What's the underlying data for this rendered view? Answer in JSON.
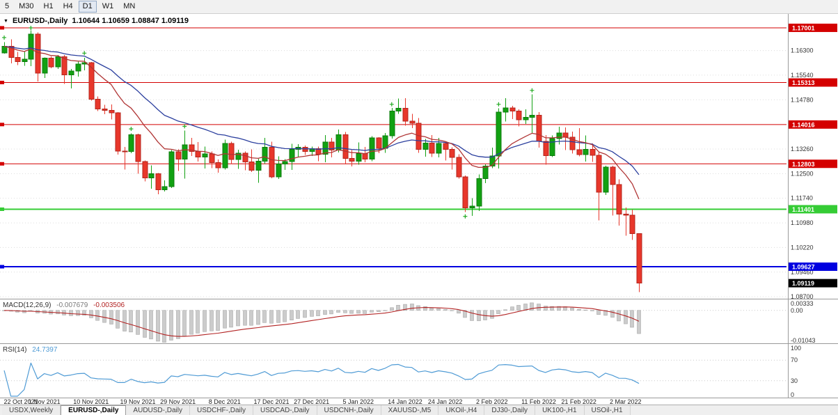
{
  "toolbar": {
    "timeframes": [
      "5",
      "M30",
      "H1",
      "H4",
      "D1",
      "W1",
      "MN"
    ],
    "active_timeframe": "D1"
  },
  "chart": {
    "title_symbol": "EURUSD-,Daily",
    "title_ohlc": "1.10644 1.10659 1.08847 1.09119"
  },
  "chart_data": {
    "type": "candlestick",
    "symbol": "EURUSD-",
    "timeframe": "Daily",
    "last_ohlc": {
      "open": "1.10644",
      "high": "1.10659",
      "low": "1.08847",
      "close": "1.09119"
    },
    "price_range": {
      "min": 1.0866,
      "max": 1.1743
    },
    "price_axis": [
      "1.16300",
      "1.15540",
      "1.14780",
      "1.13260",
      "1.12500",
      "1.11740",
      "1.10980",
      "1.10220",
      "1.09460",
      "1.08700"
    ],
    "hlines": [
      {
        "label": "1.17001",
        "value": 1.17001,
        "color": "#d40000",
        "width": 1
      },
      {
        "label": "1.15313",
        "value": 1.15313,
        "color": "#d40000",
        "width": 1
      },
      {
        "label": "1.14016",
        "value": 1.14016,
        "color": "#d40000",
        "width": 1
      },
      {
        "label": "1.12803",
        "value": 1.12803,
        "color": "#d40000",
        "width": 1
      },
      {
        "label": "1.11401",
        "value": 1.11401,
        "color": "#35cc35",
        "width": 2
      },
      {
        "label": "1.09627",
        "value": 1.09627,
        "color": "#0000e0",
        "width": 2
      }
    ],
    "current_price": {
      "label": "1.09119",
      "value": 1.09119,
      "color": "#000000"
    },
    "x_ticks": [
      {
        "index": 0,
        "label": "22 Oct 2021"
      },
      {
        "index": 6,
        "label": "1 Nov 2021"
      },
      {
        "index": 13,
        "label": "10 Nov 2021"
      },
      {
        "index": 20,
        "label": "19 Nov 2021"
      },
      {
        "index": 26,
        "label": "29 Nov 2021"
      },
      {
        "index": 33,
        "label": "8 Dec 2021"
      },
      {
        "index": 40,
        "label": "17 Dec 2021"
      },
      {
        "index": 46,
        "label": "27 Dec 2021"
      },
      {
        "index": 53,
        "label": "5 Jan 2022"
      },
      {
        "index": 60,
        "label": "14 Jan 2022"
      },
      {
        "index": 66,
        "label": "24 Jan 2022"
      },
      {
        "index": 73,
        "label": "2 Feb 2022"
      },
      {
        "index": 80,
        "label": "11 Feb 2022"
      },
      {
        "index": 86,
        "label": "21 Feb 2022"
      },
      {
        "index": 93,
        "label": "2 Mar 2022"
      }
    ],
    "candles": [
      [
        1.1623,
        1.1656,
        1.1621,
        1.1643
      ],
      [
        1.1643,
        1.1665,
        1.159,
        1.1609
      ],
      [
        1.1609,
        1.1626,
        1.1585,
        1.1596
      ],
      [
        1.1596,
        1.1626,
        1.1583,
        1.1603
      ],
      [
        1.1603,
        1.1692,
        1.1582,
        1.1681
      ],
      [
        1.1681,
        1.1686,
        1.1535,
        1.156
      ],
      [
        1.156,
        1.1609,
        1.1545,
        1.1606
      ],
      [
        1.1606,
        1.1612,
        1.1575,
        1.158
      ],
      [
        1.158,
        1.1616,
        1.1573,
        1.1611
      ],
      [
        1.1611,
        1.1616,
        1.1527,
        1.1555
      ],
      [
        1.1555,
        1.1573,
        1.1513,
        1.1567
      ],
      [
        1.1567,
        1.1596,
        1.155,
        1.1588
      ],
      [
        1.1588,
        1.1608,
        1.1569,
        1.1593
      ],
      [
        1.1593,
        1.1595,
        1.1475,
        1.148
      ],
      [
        1.148,
        1.1488,
        1.1443,
        1.145
      ],
      [
        1.145,
        1.1463,
        1.1433,
        1.1445
      ],
      [
        1.1445,
        1.1464,
        1.1417,
        1.1438
      ],
      [
        1.1438,
        1.144,
        1.1309,
        1.132
      ],
      [
        1.132,
        1.1332,
        1.1263,
        1.1319
      ],
      [
        1.1319,
        1.1374,
        1.1313,
        1.137
      ],
      [
        1.137,
        1.1373,
        1.125,
        1.1287
      ],
      [
        1.1287,
        1.1291,
        1.1226,
        1.1237
      ],
      [
        1.1237,
        1.1275,
        1.1204,
        1.125
      ],
      [
        1.125,
        1.1252,
        1.1186,
        1.12
      ],
      [
        1.12,
        1.1229,
        1.1195,
        1.121
      ],
      [
        1.121,
        1.1323,
        1.1206,
        1.1317
      ],
      [
        1.1317,
        1.1325,
        1.1258,
        1.1295
      ],
      [
        1.1295,
        1.1383,
        1.1235,
        1.1339
      ],
      [
        1.1339,
        1.136,
        1.1305,
        1.1319
      ],
      [
        1.1319,
        1.1348,
        1.1287,
        1.1301
      ],
      [
        1.1301,
        1.1334,
        1.1266,
        1.1311
      ],
      [
        1.1311,
        1.1318,
        1.1267,
        1.1284
      ],
      [
        1.1284,
        1.1294,
        1.1253,
        1.1268
      ],
      [
        1.1268,
        1.1355,
        1.1263,
        1.1343
      ],
      [
        1.1343,
        1.1349,
        1.128,
        1.1294
      ],
      [
        1.1294,
        1.1324,
        1.1265,
        1.1313
      ],
      [
        1.1313,
        1.1319,
        1.126,
        1.1286
      ],
      [
        1.1286,
        1.1325,
        1.1255,
        1.126
      ],
      [
        1.126,
        1.1296,
        1.1222,
        1.1288
      ],
      [
        1.1288,
        1.136,
        1.1281,
        1.1331
      ],
      [
        1.1331,
        1.1349,
        1.1236,
        1.124
      ],
      [
        1.124,
        1.1303,
        1.1234,
        1.128
      ],
      [
        1.128,
        1.1295,
        1.1262,
        1.1287
      ],
      [
        1.1287,
        1.1342,
        1.1261,
        1.1325
      ],
      [
        1.1325,
        1.1341,
        1.13,
        1.1331
      ],
      [
        1.1331,
        1.1337,
        1.1308,
        1.1318
      ],
      [
        1.1318,
        1.1334,
        1.1304,
        1.1327
      ],
      [
        1.1327,
        1.1334,
        1.1288,
        1.131
      ],
      [
        1.131,
        1.1369,
        1.1285,
        1.1348
      ],
      [
        1.1348,
        1.136,
        1.13,
        1.1323
      ],
      [
        1.1323,
        1.1386,
        1.1315,
        1.137
      ],
      [
        1.137,
        1.1379,
        1.1279,
        1.1297
      ],
      [
        1.1297,
        1.1323,
        1.1272,
        1.1288
      ],
      [
        1.1288,
        1.1346,
        1.1278,
        1.1312
      ],
      [
        1.1312,
        1.1332,
        1.1285,
        1.1295
      ],
      [
        1.1295,
        1.1366,
        1.1288,
        1.136
      ],
      [
        1.136,
        1.1362,
        1.1313,
        1.1328
      ],
      [
        1.1328,
        1.1375,
        1.1314,
        1.1367
      ],
      [
        1.1367,
        1.1453,
        1.1358,
        1.1443
      ],
      [
        1.1443,
        1.1482,
        1.1435,
        1.1452
      ],
      [
        1.1452,
        1.1483,
        1.1398,
        1.1412
      ],
      [
        1.1412,
        1.1435,
        1.1391,
        1.1406
      ],
      [
        1.1406,
        1.1422,
        1.1314,
        1.1325
      ],
      [
        1.1325,
        1.1357,
        1.1302,
        1.1344
      ],
      [
        1.1344,
        1.1369,
        1.1301,
        1.1313
      ],
      [
        1.1313,
        1.136,
        1.13,
        1.1343
      ],
      [
        1.1343,
        1.1349,
        1.1291,
        1.1325
      ],
      [
        1.1325,
        1.1331,
        1.1263,
        1.13
      ],
      [
        1.13,
        1.131,
        1.1235,
        1.124
      ],
      [
        1.124,
        1.1244,
        1.1131,
        1.1144
      ],
      [
        1.1144,
        1.1174,
        1.112,
        1.115
      ],
      [
        1.115,
        1.1248,
        1.1135,
        1.1235
      ],
      [
        1.1235,
        1.1279,
        1.1221,
        1.1273
      ],
      [
        1.1273,
        1.133,
        1.1267,
        1.1305
      ],
      [
        1.1305,
        1.1452,
        1.1266,
        1.144
      ],
      [
        1.144,
        1.1483,
        1.1411,
        1.1453
      ],
      [
        1.1453,
        1.1459,
        1.1418,
        1.1443
      ],
      [
        1.1443,
        1.1448,
        1.1396,
        1.1416
      ],
      [
        1.1416,
        1.1448,
        1.1403,
        1.1424
      ],
      [
        1.1424,
        1.1495,
        1.1375,
        1.143
      ],
      [
        1.143,
        1.144,
        1.133,
        1.135
      ],
      [
        1.135,
        1.1369,
        1.1278,
        1.1306
      ],
      [
        1.1306,
        1.1368,
        1.1301,
        1.1358
      ],
      [
        1.1358,
        1.1395,
        1.134,
        1.1375
      ],
      [
        1.1375,
        1.1393,
        1.1323,
        1.1362
      ],
      [
        1.1362,
        1.138,
        1.1312,
        1.1324
      ],
      [
        1.1324,
        1.1391,
        1.1303,
        1.1309
      ],
      [
        1.1309,
        1.1368,
        1.1287,
        1.1325
      ],
      [
        1.1325,
        1.1343,
        1.1286,
        1.1307
      ],
      [
        1.1307,
        1.1317,
        1.1106,
        1.1193
      ],
      [
        1.1193,
        1.1274,
        1.1184,
        1.127
      ],
      [
        1.127,
        1.1274,
        1.1121,
        1.1216
      ],
      [
        1.1216,
        1.1232,
        1.109,
        1.1125
      ],
      [
        1.1125,
        1.1145,
        1.1058,
        1.1122
      ],
      [
        1.1122,
        1.1139,
        1.1045,
        1.1065
      ],
      [
        1.10644,
        1.10659,
        1.08847,
        1.09119
      ]
    ],
    "ma_lines": [
      {
        "name": "ma-fast",
        "period": 12,
        "color": "#b03535"
      },
      {
        "name": "ma-slow",
        "period": 26,
        "color": "#2b3f9e"
      }
    ],
    "markers": [
      {
        "index": 0,
        "price": 1.167
      },
      {
        "index": 4,
        "price": 1.17
      },
      {
        "index": 12,
        "price": 1.1622
      },
      {
        "index": 19,
        "price": 1.1388
      },
      {
        "index": 27,
        "price": 1.1396
      },
      {
        "index": 58,
        "price": 1.1464
      },
      {
        "index": 69,
        "price": 1.1118
      },
      {
        "index": 74,
        "price": 1.1464
      },
      {
        "index": 79,
        "price": 1.1507
      }
    ],
    "macd": {
      "label": "MACD(12,26,9)",
      "value1": "-0.007679",
      "value2": "-0.003506",
      "axis": [
        {
          "label": "0.00333",
          "value": 0.00333
        },
        {
          "label": "0.00",
          "value": 0
        },
        {
          "label": "-0.01043",
          "value": -0.01043
        }
      ],
      "range": {
        "min": -0.01043,
        "max": 0.00333
      }
    },
    "rsi": {
      "label": "RSI(14)",
      "value": "24.7397",
      "axis": [
        {
          "label": "100",
          "value": 100
        },
        {
          "label": "70",
          "value": 70
        },
        {
          "label": "30",
          "value": 30
        },
        {
          "label": "0",
          "value": 0
        }
      ],
      "levels": [
        70,
        30
      ]
    },
    "colors": {
      "up": "#12a112",
      "up_border": "#0c7a0c",
      "down": "#e8372b",
      "down_border": "#b3261c",
      "grid": "#dcdcdc",
      "macd_bar": "#cccccc",
      "macd_bar_border": "#a8a8a8",
      "macd_signal": "#b22222",
      "rsi_line": "#4f9bd5",
      "marker": "#22aa22",
      "axis_text": "#333333"
    }
  },
  "tabs": [
    {
      "label": "USDX,Weekly",
      "active": false
    },
    {
      "label": "EURUSD-,Daily",
      "active": true
    },
    {
      "label": "AUDUSD-,Daily",
      "active": false
    },
    {
      "label": "USDCHF-,Daily",
      "active": false
    },
    {
      "label": "USDCAD-,Daily",
      "active": false
    },
    {
      "label": "USDCNH-,Daily",
      "active": false
    },
    {
      "label": "XAUUSD-,M5",
      "active": false
    },
    {
      "label": "UKOil-,H4",
      "active": false
    },
    {
      "label": "DJ30-,Daily",
      "active": false
    },
    {
      "label": "UK100-,H1",
      "active": false
    },
    {
      "label": "USOil-,H1",
      "active": false
    }
  ]
}
